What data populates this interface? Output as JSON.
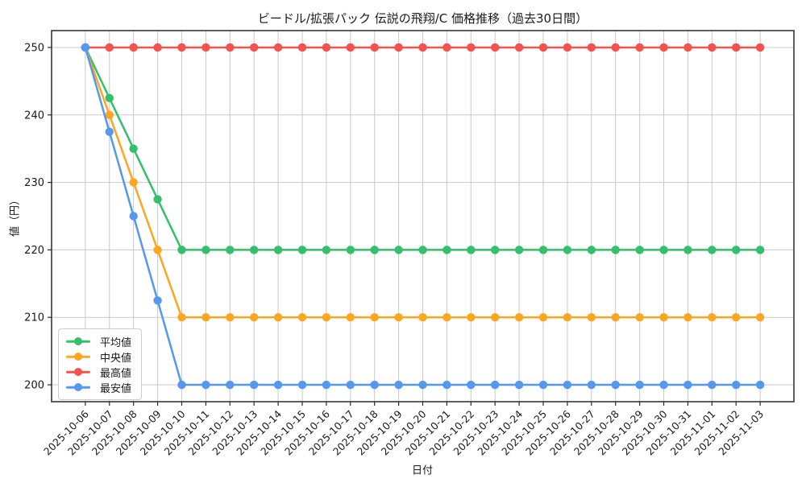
{
  "figure": {
    "background": "#ffffff"
  },
  "chart_data": {
    "type": "line",
    "title": "ビードル/拡張パック 伝説の飛翔/C 価格推移（過去30日間）",
    "xlabel": "日付",
    "ylabel": "値（円）",
    "x": [
      "2025-10-06",
      "2025-10-07",
      "2025-10-08",
      "2025-10-09",
      "2025-10-10",
      "2025-10-11",
      "2025-10-12",
      "2025-10-13",
      "2025-10-14",
      "2025-10-15",
      "2025-10-16",
      "2025-10-17",
      "2025-10-18",
      "2025-10-19",
      "2025-10-20",
      "2025-10-21",
      "2025-10-22",
      "2025-10-23",
      "2025-10-24",
      "2025-10-25",
      "2025-10-26",
      "2025-10-27",
      "2025-10-28",
      "2025-10-29",
      "2025-10-30",
      "2025-10-31",
      "2025-11-01",
      "2025-11-02",
      "2025-11-03"
    ],
    "yticks": [
      200,
      210,
      220,
      230,
      240,
      250
    ],
    "ylim": [
      197.5,
      252.5
    ],
    "grid": true,
    "legend_position": "lower left",
    "series": [
      {
        "key": "average",
        "name": "平均値",
        "color": "#34bf6b",
        "values": [
          250,
          242.5,
          235,
          227.5,
          220,
          220,
          220,
          220,
          220,
          220,
          220,
          220,
          220,
          220,
          220,
          220,
          220,
          220,
          220,
          220,
          220,
          220,
          220,
          220,
          220,
          220,
          220,
          220,
          220
        ]
      },
      {
        "key": "median",
        "name": "中央値",
        "color": "#ffa620",
        "values": [
          250,
          240,
          230,
          220,
          210,
          210,
          210,
          210,
          210,
          210,
          210,
          210,
          210,
          210,
          210,
          210,
          210,
          210,
          210,
          210,
          210,
          210,
          210,
          210,
          210,
          210,
          210,
          210,
          210
        ]
      },
      {
        "key": "max",
        "name": "最高値",
        "color": "#f6524d",
        "values": [
          250,
          250,
          250,
          250,
          250,
          250,
          250,
          250,
          250,
          250,
          250,
          250,
          250,
          250,
          250,
          250,
          250,
          250,
          250,
          250,
          250,
          250,
          250,
          250,
          250,
          250,
          250,
          250,
          250
        ]
      },
      {
        "key": "min",
        "name": "最安値",
        "color": "#5498f0",
        "values": [
          250,
          237.5,
          225,
          212.5,
          200,
          200,
          200,
          200,
          200,
          200,
          200,
          200,
          200,
          200,
          200,
          200,
          200,
          200,
          200,
          200,
          200,
          200,
          200,
          200,
          200,
          200,
          200,
          200,
          200
        ]
      }
    ],
    "style": {
      "axis_color": "#2a2a2a",
      "grid_color": "#c9c9c9",
      "text_color": "#1a1a1a",
      "line_width": 2.5,
      "marker_radius": 5.2
    }
  }
}
